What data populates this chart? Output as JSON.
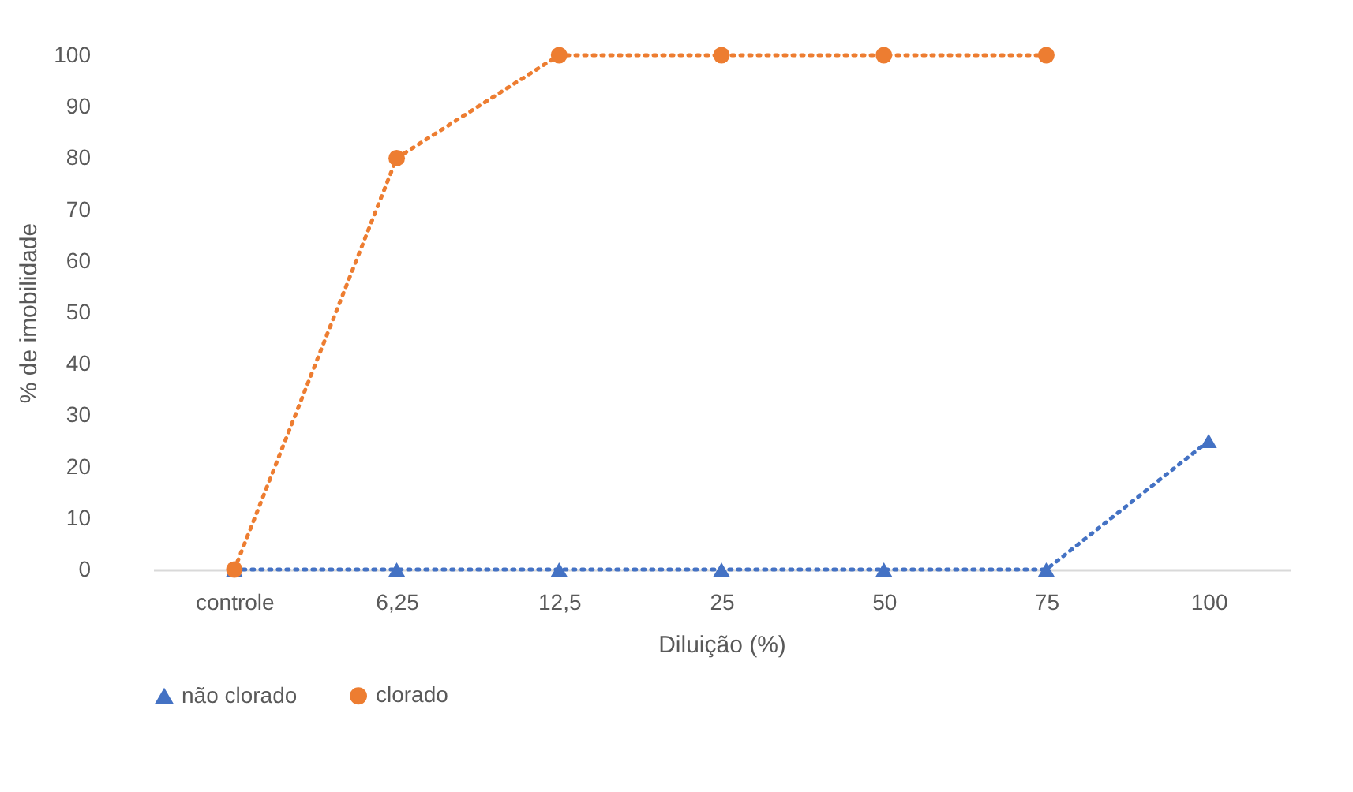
{
  "chart_data": {
    "type": "line",
    "xlabel": "Diluição (%)",
    "ylabel": "% de imobilidade",
    "categories": [
      "controle",
      "6,25",
      "12,5",
      "25",
      "50",
      "75",
      "100"
    ],
    "series": [
      {
        "name": "não clorado",
        "color": "#4472c4",
        "marker": "triangle",
        "values": [
          0,
          0,
          0,
          0,
          0,
          0,
          25
        ]
      },
      {
        "name": "clorado",
        "color": "#ed7d31",
        "marker": "circle",
        "values": [
          0,
          80,
          100,
          100,
          100,
          100,
          null
        ]
      }
    ],
    "ylim": [
      0,
      100
    ],
    "yticks": [
      0,
      10,
      20,
      30,
      40,
      50,
      60,
      70,
      80,
      90,
      100
    ],
    "legend": "bottom",
    "line_style": "dotted"
  }
}
